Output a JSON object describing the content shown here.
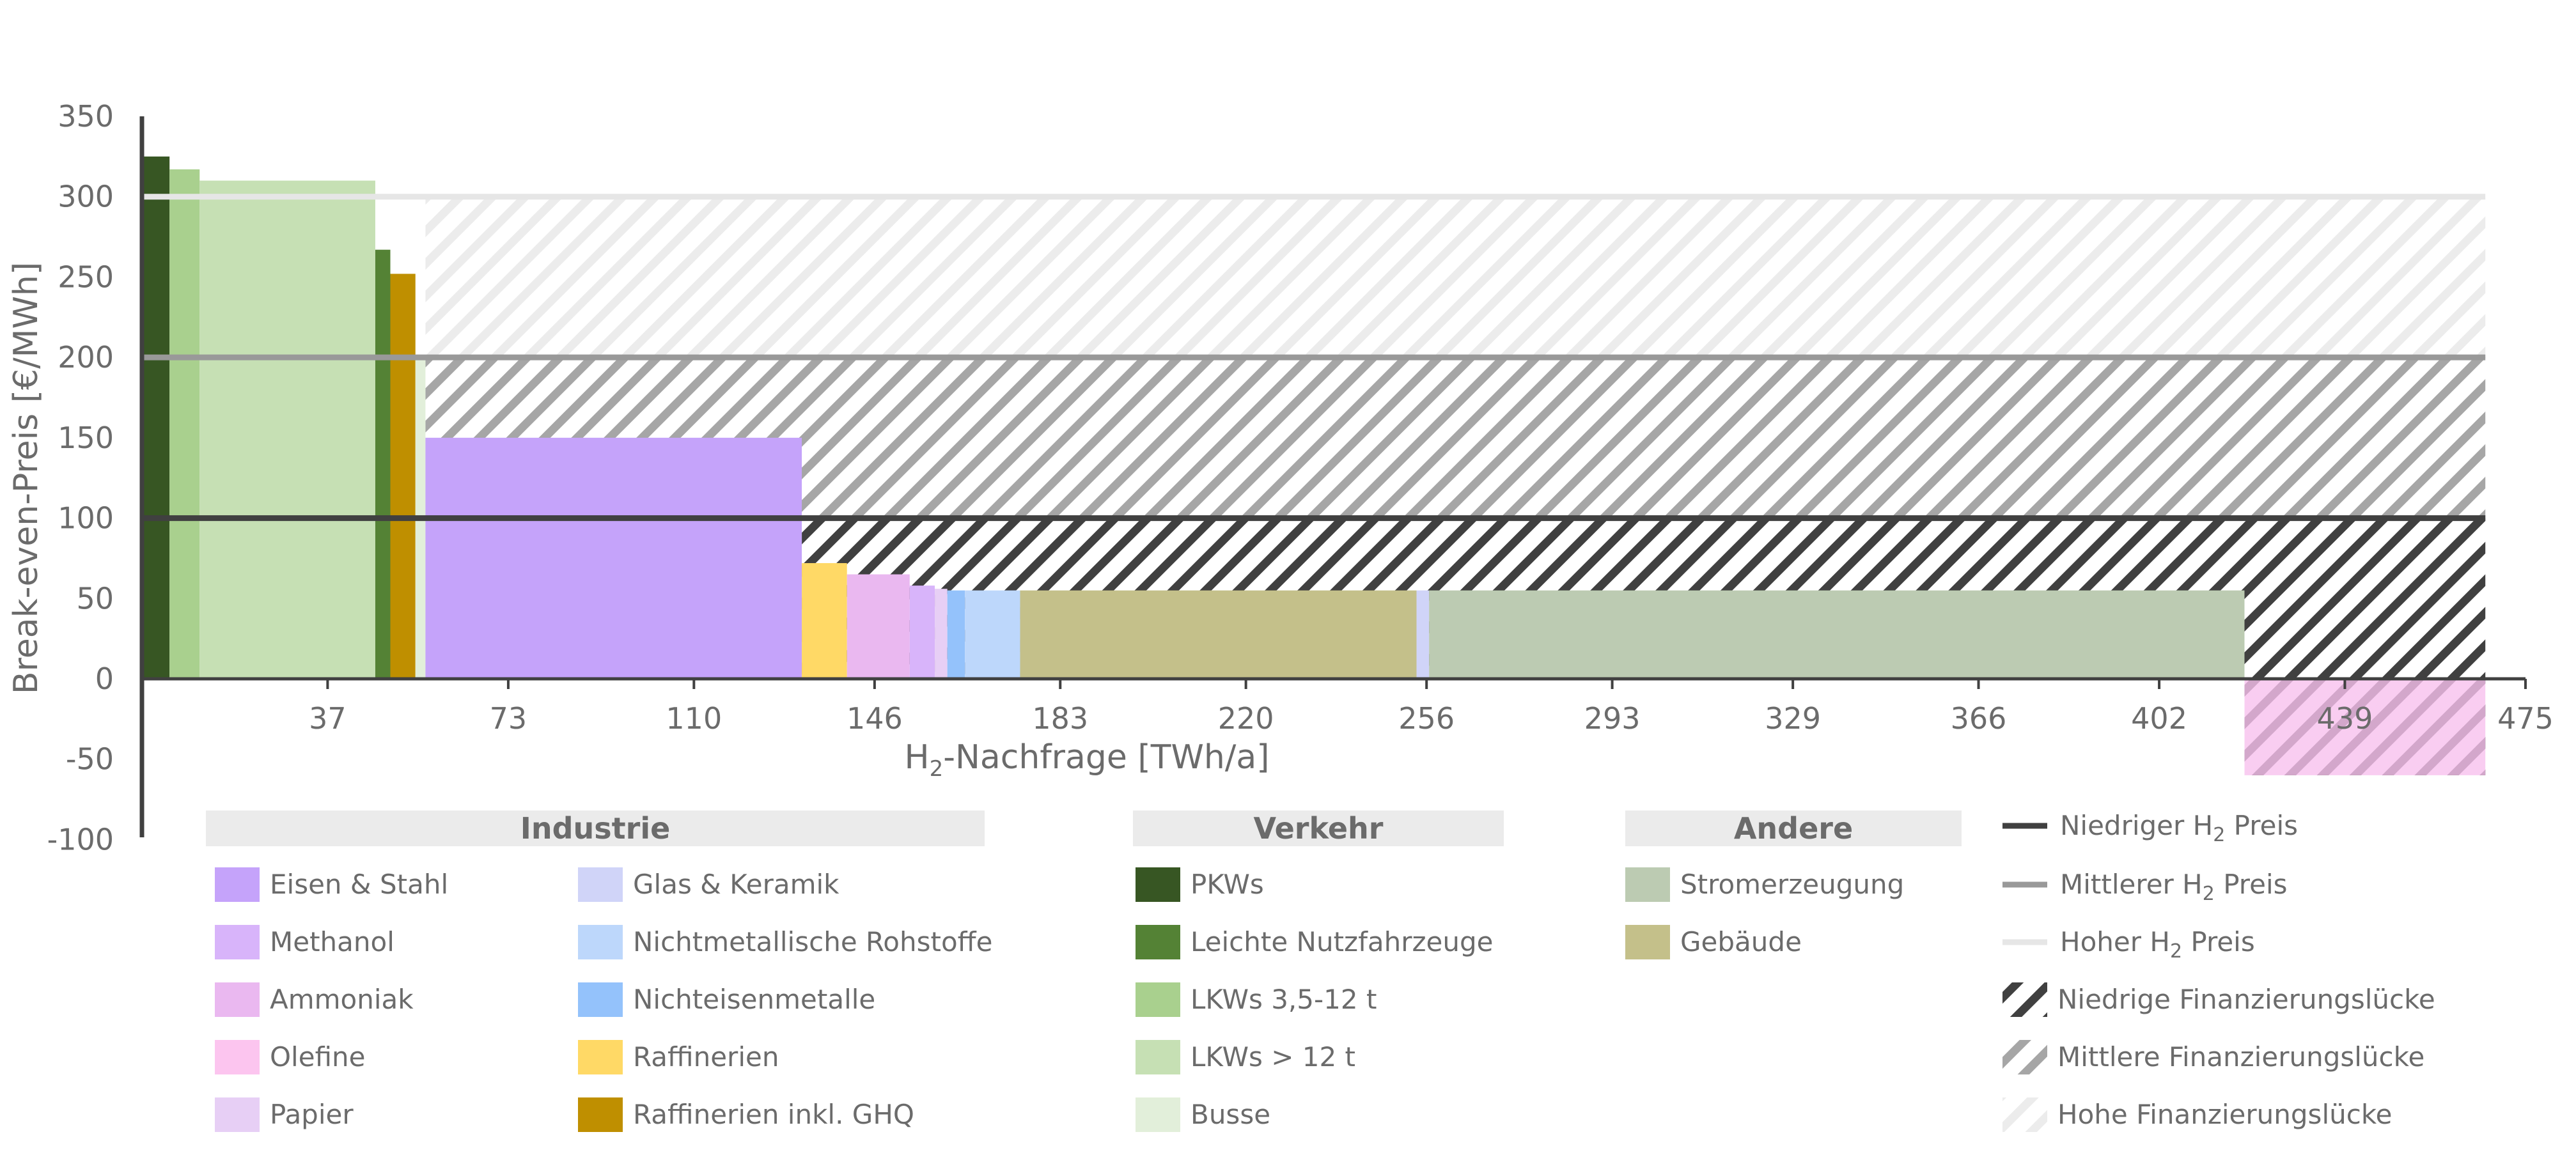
{
  "chart_data": {
    "type": "bar",
    "xlabel": "H2-Nachfrage [TWh/a]",
    "xlabel_main": "H",
    "xlabel_sub": "2",
    "xlabel_rest": "-Nachfrage [TWh/a]",
    "ylabel": "Break-even-Preis [€/MWh]",
    "xlim": [
      0,
      475
    ],
    "ylim": [
      -100,
      350
    ],
    "x_ticks": [
      "37",
      "73",
      "110",
      "146",
      "183",
      "220",
      "256",
      "293",
      "329",
      "366",
      "402",
      "439",
      "475"
    ],
    "y_ticks": [
      "350",
      "300",
      "250",
      "200",
      "150",
      "100",
      "50",
      "0",
      "-50",
      "-100"
    ],
    "segments": [
      {
        "category": "PKWs",
        "x_start": 0,
        "x_end": 5.5,
        "value": 325,
        "color": "#375623"
      },
      {
        "category": "LKWs 3,5-12 t",
        "x_start": 5.5,
        "x_end": 11.5,
        "value": 317,
        "color": "#a9d08e"
      },
      {
        "category": "LKWs > 12 t",
        "x_start": 11.5,
        "x_end": 46.5,
        "value": 310,
        "color": "#c6e0b4"
      },
      {
        "category": "Leichte Nutzfahrzeuge",
        "x_start": 46.5,
        "x_end": 49.5,
        "value": 267,
        "color": "#548235"
      },
      {
        "category": "Raffinerien inkl. GHQ",
        "x_start": 49.5,
        "x_end": 54.5,
        "value": 252,
        "color": "#bf8f00"
      },
      {
        "category": "Busse",
        "x_start": 54.5,
        "x_end": 56.5,
        "value": 200,
        "color": "#e2efda"
      },
      {
        "category": "Eisen & Stahl",
        "x_start": 56.5,
        "x_end": 131.5,
        "value": 150,
        "color": "#c5a3fa"
      },
      {
        "category": "Raffinerien",
        "x_start": 131.5,
        "x_end": 140.5,
        "value": 72,
        "color": "#ffd966"
      },
      {
        "category": "Ammoniak",
        "x_start": 140.5,
        "x_end": 153,
        "value": 65,
        "color": "#eab8f0"
      },
      {
        "category": "Methanol",
        "x_start": 153,
        "x_end": 158,
        "value": 58,
        "color": "#d8b4fa"
      },
      {
        "category": "Papier",
        "x_start": 158,
        "x_end": 160.5,
        "value": 56,
        "color": "#e7cff5"
      },
      {
        "category": "Nichteisenmetalle",
        "x_start": 160.5,
        "x_end": 164,
        "value": 55,
        "color": "#94c2fb"
      },
      {
        "category": "Nichtmetallische Rohstoffe",
        "x_start": 164,
        "x_end": 175,
        "value": 55,
        "color": "#bdd7fb"
      },
      {
        "category": "Gebäude",
        "x_start": 175,
        "x_end": 254,
        "value": 55,
        "color": "#c4c08a"
      },
      {
        "category": "Glas & Keramik",
        "x_start": 254,
        "x_end": 256.5,
        "value": 55,
        "color": "#d0d4f8"
      },
      {
        "category": "Stromerzeugung",
        "x_start": 256.5,
        "x_end": 419,
        "value": 55,
        "color": "#bccbb2"
      },
      {
        "category": "Olefine",
        "x_start": 419,
        "x_end": 467,
        "value": -60,
        "color": "#f7c0ee"
      }
    ],
    "price_lines": [
      {
        "name": "Niedriger H2 Preis",
        "value": 100,
        "color": "#404040"
      },
      {
        "name": "Mittlerer H2 Preis",
        "value": 200,
        "color": "#999999"
      },
      {
        "name": "Hoher H2 Preis",
        "value": 300,
        "color": "#e6e6e6"
      }
    ],
    "legend_groups": [
      {
        "title": "Industrie",
        "items": [
          {
            "label": "Eisen & Stahl",
            "color": "#c5a3fa"
          },
          {
            "label": "Methanol",
            "color": "#d8b4fa"
          },
          {
            "label": "Ammoniak",
            "color": "#eab8f0"
          },
          {
            "label": "Olefine",
            "color": "#fcc5ef"
          },
          {
            "label": "Papier",
            "color": "#e7cff5"
          },
          {
            "label": "Glas & Keramik",
            "color": "#d0d4f8"
          },
          {
            "label": "Nichtmetallische Rohstoffe",
            "color": "#bdd7fb"
          },
          {
            "label": "Nichteisenmetalle",
            "color": "#94c2fb"
          },
          {
            "label": "Raffinerien",
            "color": "#ffd966"
          },
          {
            "label": "Raffinerien inkl. GHQ",
            "color": "#bf8f00"
          }
        ]
      },
      {
        "title": "Verkehr",
        "items": [
          {
            "label": "PKWs",
            "color": "#375623"
          },
          {
            "label": "Leichte Nutzfahrzeuge",
            "color": "#548235"
          },
          {
            "label": "LKWs 3,5-12 t",
            "color": "#a9d08e"
          },
          {
            "label": "LKWs > 12 t",
            "color": "#c6e0b4"
          },
          {
            "label": "Busse",
            "color": "#e2efda"
          }
        ]
      },
      {
        "title": "Andere",
        "items": [
          {
            "label": "Stromerzeugung",
            "color": "#bccbb2"
          },
          {
            "label": "Gebäude",
            "color": "#c4c08a"
          }
        ]
      }
    ],
    "legend_lines": [
      {
        "pre": "Niedriger H",
        "sub": "2",
        "post": " Preis",
        "color": "#404040"
      },
      {
        "pre": "Mittlerer H",
        "sub": "2",
        "post": " Preis",
        "color": "#999999"
      },
      {
        "pre": "Hoher H",
        "sub": "2",
        "post": " Preis",
        "color": "#e6e6e6"
      }
    ],
    "legend_gaps": [
      {
        "label": "Niedrige Finanzierungslücke",
        "color": "#404040"
      },
      {
        "label": "Mittlere Finanzierungslücke",
        "color": "#999999"
      },
      {
        "label": "Hohe Finanzierungslücke",
        "color": "#e6e6e6"
      }
    ],
    "grid": false
  }
}
